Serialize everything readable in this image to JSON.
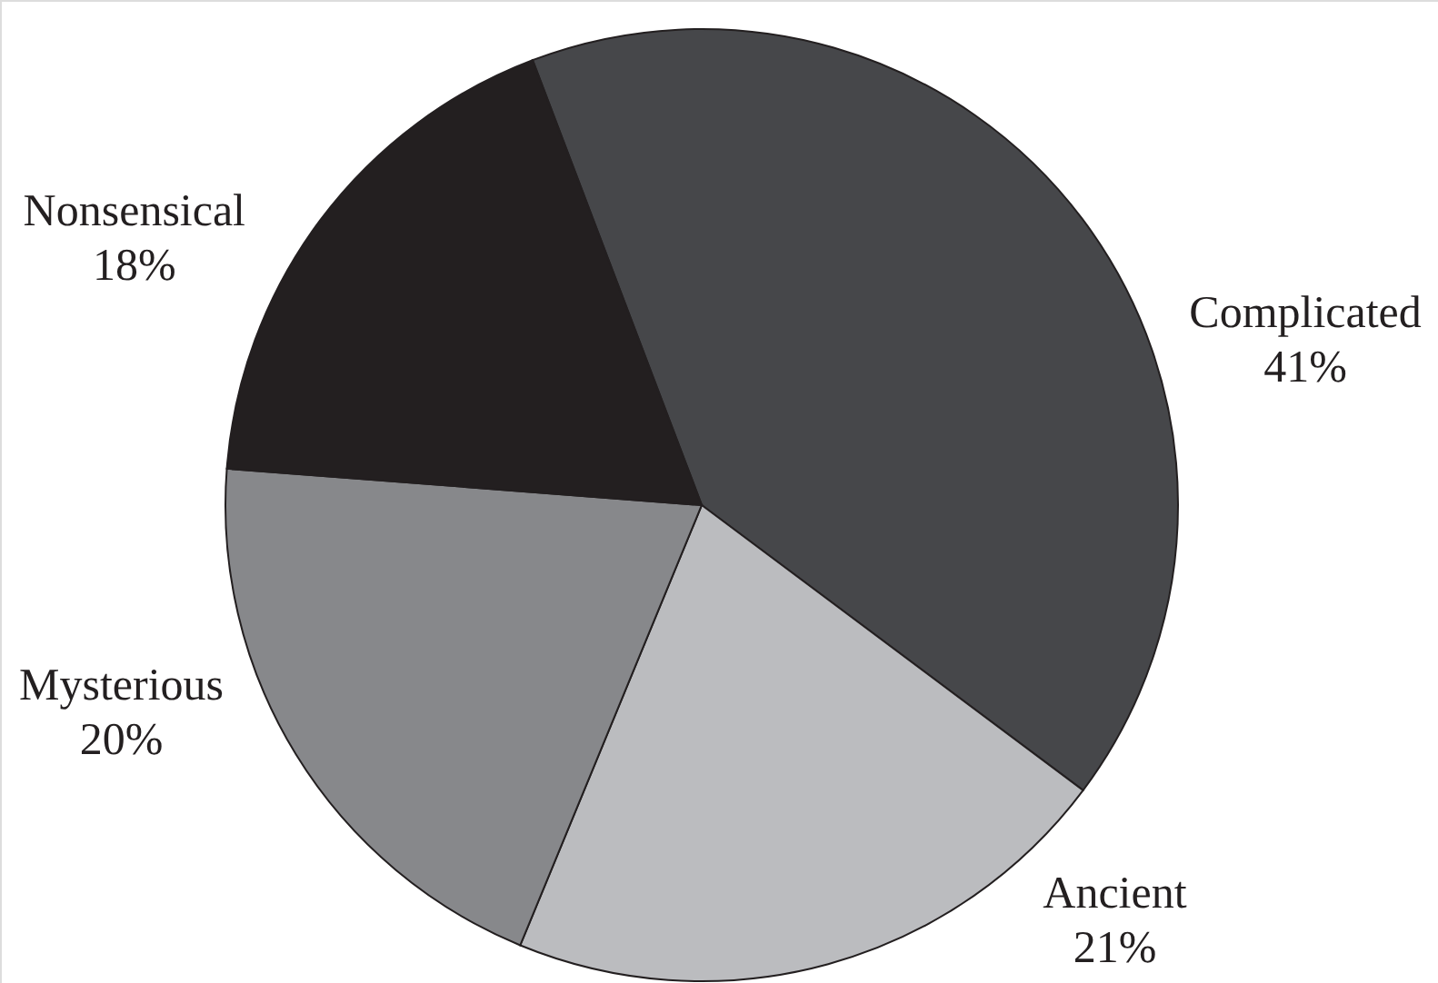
{
  "chart_data": {
    "type": "pie",
    "categories": [
      "Complicated",
      "Ancient",
      "Mysterious",
      "Nonsensical"
    ],
    "values": [
      41,
      21,
      20,
      18
    ],
    "colors": [
      "#46474a",
      "#bbbcbf",
      "#87888b",
      "#231f20"
    ],
    "value_labels": [
      "41%",
      "21%",
      "20%",
      "18%"
    ],
    "legend": false
  }
}
